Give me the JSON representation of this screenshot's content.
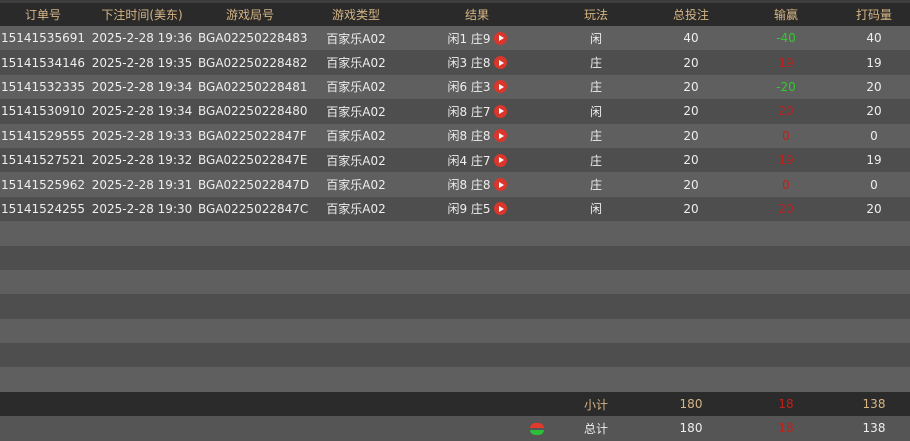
{
  "headers": [
    "订单号",
    "下注时间(美东)",
    "游戏局号",
    "游戏类型",
    "结果",
    "玩法",
    "总投注",
    "输赢",
    "打码量"
  ],
  "rows": [
    [
      "15141535691",
      "2025-2-28 19:36",
      "BGA02250228483",
      "百家乐A02",
      "闲1 庄9",
      "闲",
      "40",
      "-40",
      "40"
    ],
    [
      "15141534146",
      "2025-2-28 19:35",
      "BGA02250228482",
      "百家乐A02",
      "闲3 庄8",
      "庄",
      "20",
      "19",
      "19"
    ],
    [
      "15141532335",
      "2025-2-28 19:34",
      "BGA02250228481",
      "百家乐A02",
      "闲6 庄3",
      "庄",
      "20",
      "-20",
      "20"
    ],
    [
      "15141530910",
      "2025-2-28 19:34",
      "BGA02250228480",
      "百家乐A02",
      "闲8 庄7",
      "闲",
      "20",
      "20",
      "20"
    ],
    [
      "15141529555",
      "2025-2-28 19:33",
      "BGA0225022847F",
      "百家乐A02",
      "闲8 庄8",
      "庄",
      "20",
      "0",
      "0"
    ],
    [
      "15141527521",
      "2025-2-28 19:32",
      "BGA0225022847E",
      "百家乐A02",
      "闲4 庄7",
      "庄",
      "20",
      "19",
      "19"
    ],
    [
      "15141525962",
      "2025-2-28 19:31",
      "BGA0225022847D",
      "百家乐A02",
      "闲8 庄8",
      "庄",
      "20",
      "0",
      "0"
    ],
    [
      "15141524255",
      "2025-2-28 19:30",
      "BGA0225022847C",
      "百家乐A02",
      "闲9 庄5",
      "闲",
      "20",
      "20",
      "20"
    ]
  ],
  "subtotal": {
    "label": "小计",
    "total_bet": "180",
    "win_loss": "18",
    "turnover": "138"
  },
  "total": {
    "label": "总计",
    "total_bet": "180",
    "win_loss": "18",
    "turnover": "138",
    "icon": "refresh-icon"
  },
  "colors": {
    "header_text": "#d6b585",
    "loss": "#2ecc2e",
    "win": "#c0201c"
  }
}
